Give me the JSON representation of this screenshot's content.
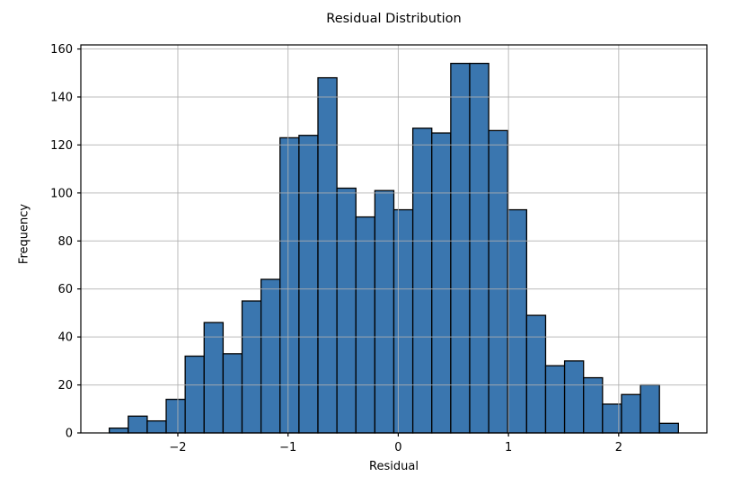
{
  "chart_data": {
    "type": "bar",
    "subtype": "histogram",
    "title": "Residual Distribution",
    "xlabel": "Residual",
    "ylabel": "Frequency",
    "bins": {
      "start": -2.622,
      "width": 0.17213,
      "count": 30
    },
    "values": [
      2,
      7,
      5,
      14,
      32,
      46,
      33,
      55,
      64,
      123,
      124,
      148,
      102,
      90,
      101,
      93,
      127,
      125,
      154,
      154,
      126,
      93,
      49,
      28,
      30,
      23,
      12,
      16,
      20,
      4
    ],
    "xlim": [
      -2.88,
      2.8
    ],
    "ylim": [
      0,
      161.7
    ],
    "xticks": [
      -2,
      -1,
      0,
      1,
      2
    ],
    "yticks": [
      0,
      20,
      40,
      60,
      80,
      100,
      120,
      140,
      160
    ],
    "grid": true,
    "legend": false,
    "bar_color": "#3a76af",
    "bar_edge_color": "#000000",
    "grid_color": "#b0b0b0",
    "spine_color": "#000000",
    "text_color": "#000000"
  }
}
